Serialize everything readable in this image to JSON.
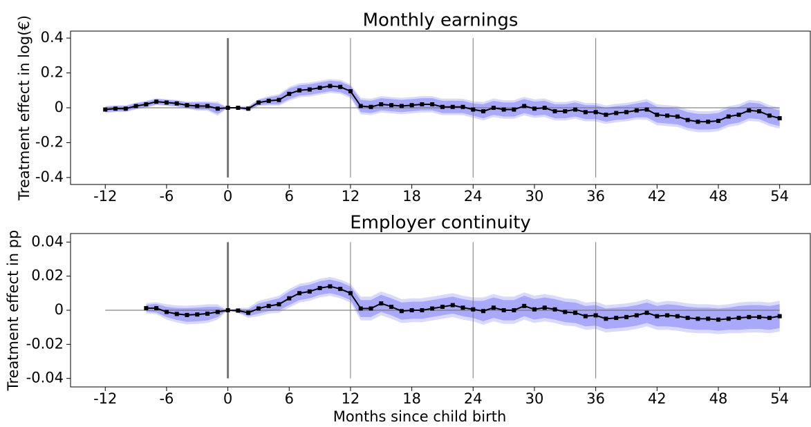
{
  "chart_data": [
    {
      "type": "line",
      "title": "Monthly earnings",
      "y_label": "Treatment effect in log(€)",
      "x": [
        -12,
        -11,
        -10,
        -9,
        -8,
        -7,
        -6,
        -5,
        -4,
        -3,
        -2,
        -1,
        0,
        1,
        2,
        3,
        4,
        5,
        6,
        7,
        8,
        9,
        10,
        11,
        12,
        13,
        14,
        15,
        16,
        17,
        18,
        19,
        20,
        21,
        22,
        23,
        24,
        25,
        26,
        27,
        28,
        29,
        30,
        31,
        32,
        33,
        34,
        35,
        36,
        37,
        38,
        39,
        40,
        41,
        42,
        43,
        44,
        45,
        46,
        47,
        48,
        49,
        50,
        51,
        52,
        53,
        54
      ],
      "values": [
        -0.01,
        -0.005,
        -0.005,
        0.01,
        0.02,
        0.035,
        0.03,
        0.025,
        0.015,
        0.01,
        0.01,
        -0.005,
        0,
        0,
        -0.005,
        0.03,
        0.04,
        0.045,
        0.08,
        0.1,
        0.105,
        0.115,
        0.125,
        0.12,
        0.095,
        0.01,
        0.005,
        0.02,
        0.015,
        0.01,
        0.015,
        0.02,
        0.02,
        0.005,
        0.005,
        0.005,
        -0.01,
        -0.02,
        0,
        -0.01,
        -0.01,
        0.01,
        -0.005,
        0,
        -0.02,
        -0.02,
        -0.01,
        -0.025,
        -0.025,
        -0.04,
        -0.03,
        -0.025,
        -0.015,
        -0.01,
        -0.04,
        -0.045,
        -0.05,
        -0.07,
        -0.08,
        -0.08,
        -0.075,
        -0.05,
        -0.04,
        -0.015,
        -0.02,
        -0.045,
        -0.06
      ],
      "band_inner": [
        0.015,
        0.015,
        0.015,
        0.015,
        0.015,
        0.015,
        0.015,
        0.015,
        0.015,
        0.02,
        0.02,
        0.03,
        0,
        0.005,
        0.01,
        0.015,
        0.02,
        0.025,
        0.03,
        0.03,
        0.03,
        0.03,
        0.03,
        0.03,
        0.03,
        0.035,
        0.035,
        0.035,
        0.035,
        0.035,
        0.035,
        0.035,
        0.035,
        0.035,
        0.035,
        0.035,
        0.035,
        0.04,
        0.04,
        0.04,
        0.04,
        0.04,
        0.04,
        0.04,
        0.04,
        0.04,
        0.04,
        0.04,
        0.04,
        0.04,
        0.04,
        0.04,
        0.04,
        0.045,
        0.045,
        0.045,
        0.045,
        0.045,
        0.045,
        0.045,
        0.045,
        0.045,
        0.045,
        0.045,
        0.045,
        0.045,
        0.045
      ],
      "band_outer": [
        0.02,
        0.02,
        0.02,
        0.02,
        0.02,
        0.02,
        0.02,
        0.02,
        0.02,
        0.027,
        0.027,
        0.04,
        0,
        0.008,
        0.015,
        0.02,
        0.027,
        0.033,
        0.04,
        0.04,
        0.04,
        0.04,
        0.04,
        0.04,
        0.04,
        0.047,
        0.047,
        0.047,
        0.047,
        0.047,
        0.047,
        0.047,
        0.047,
        0.047,
        0.047,
        0.047,
        0.047,
        0.053,
        0.053,
        0.053,
        0.053,
        0.053,
        0.053,
        0.053,
        0.053,
        0.053,
        0.053,
        0.053,
        0.053,
        0.053,
        0.053,
        0.053,
        0.053,
        0.06,
        0.06,
        0.06,
        0.06,
        0.06,
        0.06,
        0.06,
        0.06,
        0.06,
        0.06,
        0.06,
        0.06,
        0.06,
        0.06
      ],
      "color": "#000000",
      "band_inner_color": "#a9a9fb",
      "band_outer_color": "#d9d9fb",
      "xlim": [
        -15.4,
        57.0
      ],
      "ylim": [
        -0.44,
        0.44
      ],
      "xticks": [
        -12,
        -6,
        0,
        6,
        12,
        18,
        24,
        30,
        36,
        42,
        48,
        54
      ],
      "yticks": [
        -0.4,
        -0.2,
        0,
        0.2,
        0.4
      ],
      "vlines": [
        0,
        12,
        24,
        36
      ]
    },
    {
      "type": "line",
      "title": "Employer continuity",
      "y_label": "Treatment effect in pp",
      "x_label": "Months since child birth",
      "x": [
        -8,
        -7,
        -6,
        -5,
        -4,
        -3,
        -2,
        -1,
        0,
        1,
        2,
        3,
        4,
        5,
        6,
        7,
        8,
        9,
        10,
        11,
        12,
        13,
        14,
        15,
        16,
        17,
        18,
        19,
        20,
        21,
        22,
        23,
        24,
        25,
        26,
        27,
        28,
        29,
        30,
        31,
        32,
        33,
        34,
        35,
        36,
        37,
        38,
        39,
        40,
        41,
        42,
        43,
        44,
        45,
        46,
        47,
        48,
        49,
        50,
        51,
        52,
        53,
        54
      ],
      "values": [
        0.0012,
        0.0012,
        -0.001,
        -0.0022,
        -0.0028,
        -0.0025,
        -0.002,
        -0.001,
        0,
        -0.0002,
        -0.0015,
        0.001,
        0.0025,
        0.0035,
        0.007,
        0.01,
        0.011,
        0.013,
        0.014,
        0.0125,
        0.01,
        0.001,
        0.001,
        0.004,
        0.002,
        -0.0005,
        0,
        0,
        0.001,
        0.002,
        0.003,
        0.0015,
        0.0005,
        -0.0005,
        0.0015,
        0,
        0,
        0.0025,
        0.0005,
        0.0015,
        0.0005,
        -0.001,
        -0.0015,
        -0.0035,
        -0.003,
        -0.005,
        -0.0045,
        -0.004,
        -0.003,
        -0.0015,
        -0.0035,
        -0.003,
        -0.0035,
        -0.0045,
        -0.005,
        -0.005,
        -0.0055,
        -0.005,
        -0.0045,
        -0.004,
        -0.004,
        -0.0045,
        -0.0035
      ],
      "band_inner": [
        0.002,
        0.0025,
        0.003,
        0.0035,
        0.004,
        0.004,
        0.004,
        0.003,
        0,
        0.001,
        0.002,
        0.003,
        0.003,
        0.0035,
        0.004,
        0.004,
        0.004,
        0.004,
        0.004,
        0.004,
        0.004,
        0.005,
        0.005,
        0.005,
        0.005,
        0.005,
        0.005,
        0.005,
        0.005,
        0.005,
        0.005,
        0.005,
        0.005,
        0.006,
        0.006,
        0.006,
        0.006,
        0.006,
        0.006,
        0.006,
        0.006,
        0.006,
        0.006,
        0.006,
        0.006,
        0.006,
        0.006,
        0.006,
        0.006,
        0.006,
        0.006,
        0.0065,
        0.0065,
        0.0065,
        0.0065,
        0.0065,
        0.0065,
        0.0065,
        0.007,
        0.007,
        0.007,
        0.007,
        0.007
      ],
      "band_outer": [
        0.003,
        0.0035,
        0.0045,
        0.005,
        0.0055,
        0.0055,
        0.0055,
        0.0045,
        0,
        0.0015,
        0.003,
        0.0045,
        0.0045,
        0.005,
        0.0055,
        0.0055,
        0.0055,
        0.0055,
        0.0055,
        0.0055,
        0.0055,
        0.007,
        0.007,
        0.007,
        0.007,
        0.007,
        0.007,
        0.007,
        0.007,
        0.007,
        0.007,
        0.007,
        0.007,
        0.008,
        0.008,
        0.008,
        0.008,
        0.008,
        0.008,
        0.008,
        0.008,
        0.008,
        0.008,
        0.008,
        0.008,
        0.008,
        0.008,
        0.008,
        0.008,
        0.008,
        0.008,
        0.0085,
        0.0085,
        0.0085,
        0.0085,
        0.0085,
        0.0085,
        0.0085,
        0.009,
        0.009,
        0.009,
        0.009,
        0.009
      ],
      "color": "#000000",
      "band_inner_color": "#a9a9fb",
      "band_outer_color": "#d9d9fb",
      "xlim": [
        -15.4,
        57.0
      ],
      "ylim": [
        -0.045,
        0.045
      ],
      "xticks": [
        -12,
        -6,
        0,
        6,
        12,
        18,
        24,
        30,
        36,
        42,
        48,
        54
      ],
      "yticks": [
        -0.04,
        -0.02,
        0,
        0.02,
        0.04
      ],
      "vlines": [
        0,
        12,
        24,
        36
      ]
    }
  ]
}
